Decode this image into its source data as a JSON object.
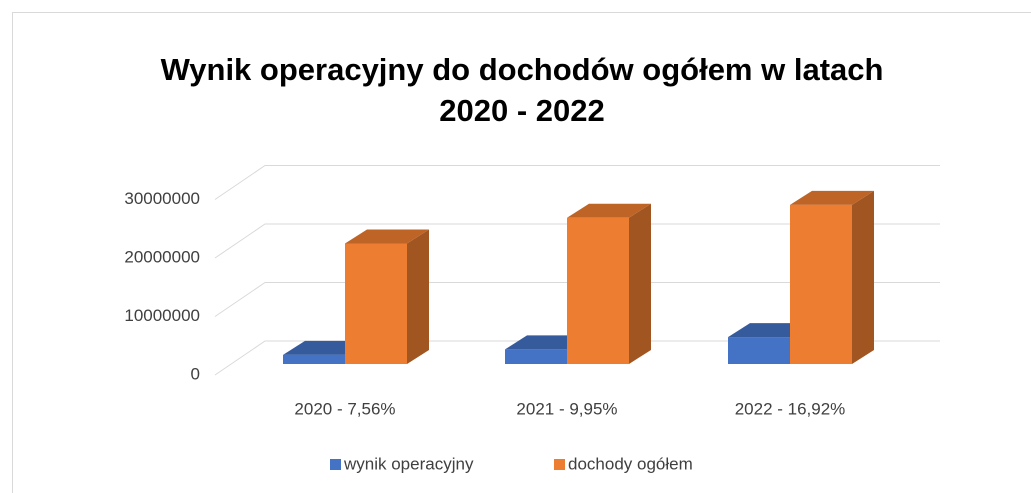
{
  "chart_data": {
    "type": "bar3d",
    "title": "Wynik operacyjny do dochodów ogółem w latach 2020 - 2022",
    "categories": [
      "2020 - 7,56%",
      "2021 - 9,95%",
      "2022 - 16,92%"
    ],
    "series": [
      {
        "name": "wynik operacyjny",
        "color": "#4472c4",
        "values": [
          1560000,
          2490000,
          4600000
        ]
      },
      {
        "name": "dochody ogółem",
        "color": "#ed7d31",
        "values": [
          20600000,
          25000000,
          27200000
        ]
      }
    ],
    "ylim": [
      0,
      30000000
    ],
    "yticks": [
      0,
      10000000,
      20000000,
      30000000
    ],
    "grid": true,
    "legend": "bottom"
  }
}
